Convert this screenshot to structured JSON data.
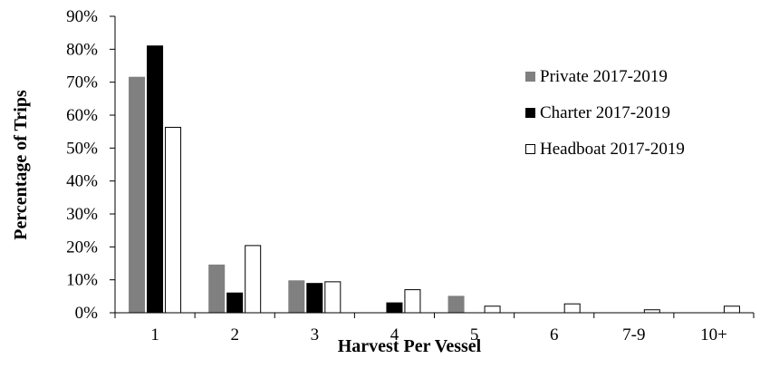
{
  "chart_data": {
    "type": "bar",
    "title": "",
    "xlabel": "Harvest Per Vessel",
    "ylabel": "Percentage of Trips",
    "categories": [
      "1",
      "2",
      "3",
      "4",
      "5",
      "6",
      "7-9",
      "10+"
    ],
    "ylim": [
      0,
      90
    ],
    "y_ticks": [
      {
        "value": 0,
        "label": "0%"
      },
      {
        "value": 10,
        "label": "10%"
      },
      {
        "value": 20,
        "label": "20%"
      },
      {
        "value": 30,
        "label": "30%"
      },
      {
        "value": 40,
        "label": "40%"
      },
      {
        "value": 50,
        "label": "50%"
      },
      {
        "value": 60,
        "label": "60%"
      },
      {
        "value": 70,
        "label": "70%"
      },
      {
        "value": 80,
        "label": "80%"
      },
      {
        "value": 90,
        "label": "90%"
      }
    ],
    "grid": false,
    "legend_position": "right",
    "series": [
      {
        "name": "Private 2017-2019",
        "color": "#808080",
        "stroke": "#808080",
        "values": [
          71.5,
          14.5,
          9.7,
          0,
          5.0,
          0,
          0,
          0
        ]
      },
      {
        "name": "Charter 2017-2019",
        "color": "#000000",
        "stroke": "#000000",
        "values": [
          81.0,
          6.0,
          8.9,
          3.0,
          0,
          0,
          0,
          0
        ]
      },
      {
        "name": "Headboat 2017-2019",
        "color": "#ffffff",
        "stroke": "#000000",
        "values": [
          56.3,
          20.4,
          9.4,
          7.0,
          2.0,
          2.7,
          0.9,
          2.0
        ]
      }
    ]
  }
}
